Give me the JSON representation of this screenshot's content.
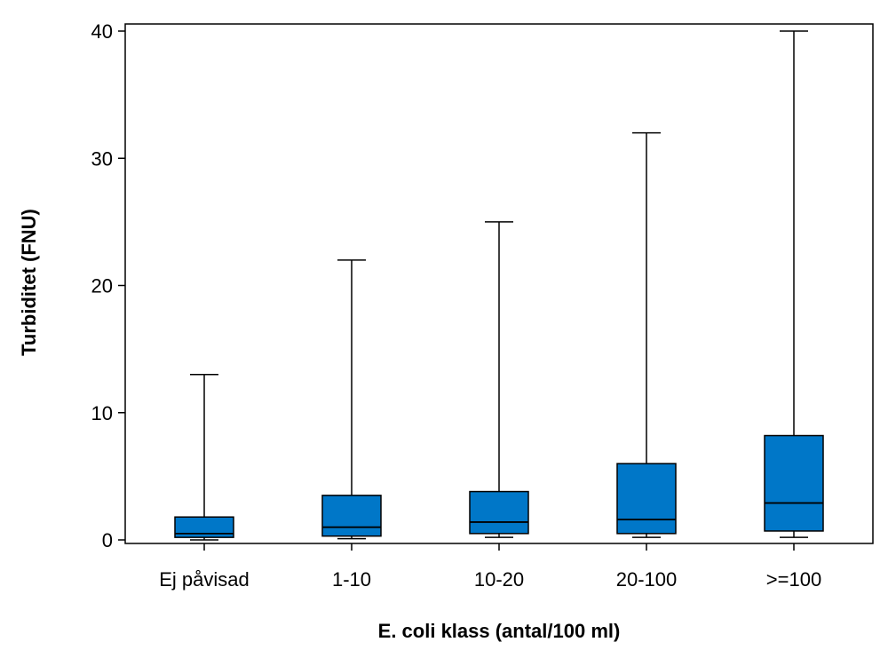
{
  "chart_data": {
    "type": "box",
    "xlabel": "E. coli klass (antal/100 ml)",
    "ylabel": "Turbiditet (FNU)",
    "ylim": [
      0,
      40
    ],
    "yticks": [
      0,
      10,
      20,
      30,
      40
    ],
    "grid": false,
    "box_color": "#0077C8",
    "categories": [
      "Ej påvisad",
      "1-10",
      "10-20",
      "20-100",
      ">=100"
    ],
    "boxes": [
      {
        "min": 0.0,
        "q1": 0.2,
        "median": 0.5,
        "q3": 1.8,
        "max": 13
      },
      {
        "min": 0.1,
        "q1": 0.3,
        "median": 1.0,
        "q3": 3.5,
        "max": 22
      },
      {
        "min": 0.2,
        "q1": 0.5,
        "median": 1.4,
        "q3": 3.8,
        "max": 25
      },
      {
        "min": 0.2,
        "q1": 0.5,
        "median": 1.6,
        "q3": 6.0,
        "max": 32
      },
      {
        "min": 0.2,
        "q1": 0.7,
        "median": 2.9,
        "q3": 8.2,
        "max": 40
      }
    ]
  }
}
